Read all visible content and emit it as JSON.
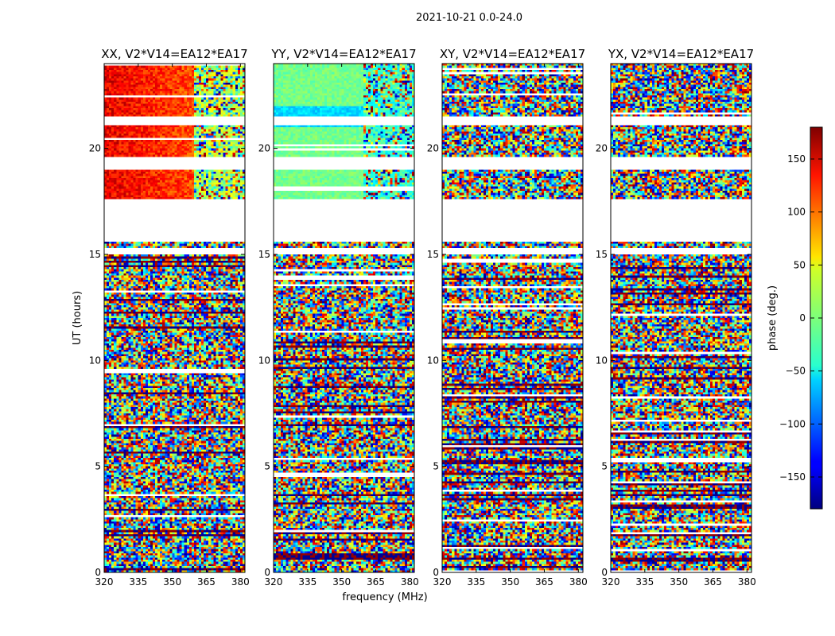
{
  "chart_data": {
    "type": "heatmap",
    "title": "2021-10-21 0.0-24.0",
    "xlabel": "frequency (MHz)",
    "ylabel": "UT (hours)",
    "xlim": [
      320,
      382
    ],
    "ylim": [
      0,
      24
    ],
    "xticks": [
      320,
      335,
      350,
      365,
      380
    ],
    "yticks": [
      0,
      5,
      10,
      15,
      20
    ],
    "panels": [
      {
        "id": "xx",
        "title": "XX, V2*V14=EA12*EA17",
        "mode": "xx"
      },
      {
        "id": "yy",
        "title": "YY, V2*V14=EA12*EA17",
        "mode": "yy"
      },
      {
        "id": "xy",
        "title": "XY, V2*V14=EA12*EA17",
        "mode": "noise"
      },
      {
        "id": "yx",
        "title": "YX, V2*V14=EA12*EA17",
        "mode": "noise"
      }
    ],
    "colorbar": {
      "label": "phase (deg.)",
      "range": [
        -180,
        180
      ],
      "ticks": [
        150,
        100,
        50,
        0,
        -50,
        -100,
        -150
      ],
      "colormap": "jet"
    },
    "blank_ranges_hours": [
      [
        15.6,
        17.6
      ],
      [
        19.0,
        19.6
      ],
      [
        21.15,
        21.5
      ],
      [
        15.0,
        15.25
      ]
    ]
  }
}
